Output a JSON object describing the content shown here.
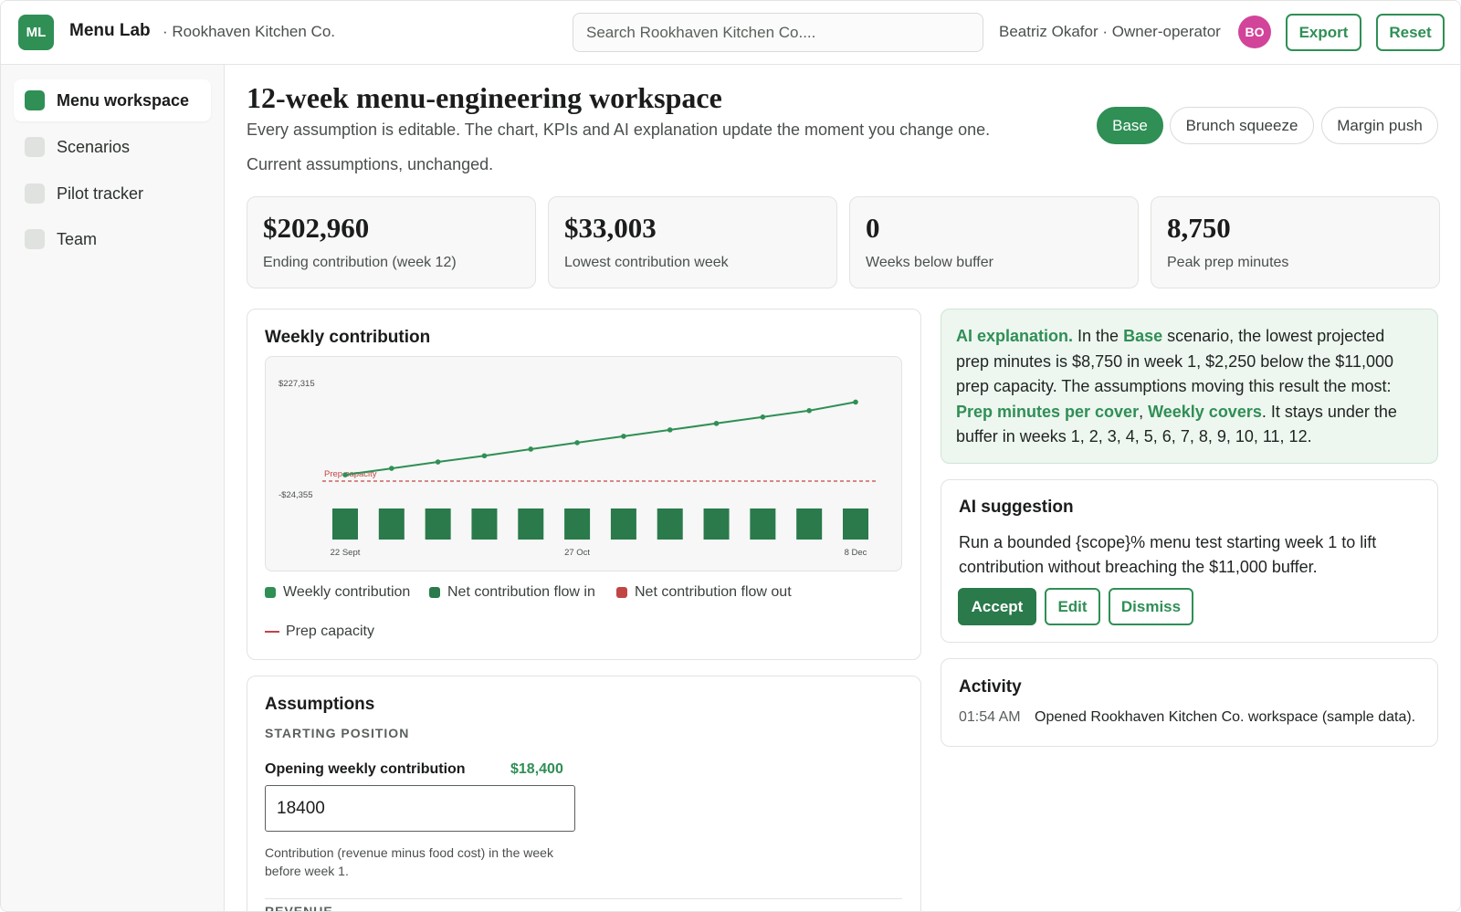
{
  "header": {
    "logo": "ML",
    "app_name": "Menu Lab",
    "org_name": "· Rookhaven Kitchen Co.",
    "search_placeholder": "Search Rookhaven Kitchen Co....",
    "user_label": "Beatriz Okafor · Owner-operator",
    "avatar_initials": "BO",
    "export_label": "Export",
    "reset_label": "Reset"
  },
  "sidebar": {
    "items": [
      {
        "label": "Menu workspace",
        "active": true
      },
      {
        "label": "Scenarios",
        "active": false
      },
      {
        "label": "Pilot tracker",
        "active": false
      },
      {
        "label": "Team",
        "active": false
      }
    ]
  },
  "main": {
    "title": "12-week menu-engineering workspace",
    "subtitle": "Every assumption is editable. The chart, KPIs and AI explanation update the moment you change one.",
    "status": "Current assumptions, unchanged.",
    "scenarios": [
      {
        "label": "Base",
        "active": true
      },
      {
        "label": "Brunch squeeze",
        "active": false
      },
      {
        "label": "Margin push",
        "active": false
      }
    ],
    "kpis": [
      {
        "value": "$202,960",
        "label": "Ending contribution (week 12)"
      },
      {
        "value": "$33,003",
        "label": "Lowest contribution week"
      },
      {
        "value": "0",
        "label": "Weeks below buffer"
      },
      {
        "value": "8,750",
        "label": "Peak prep minutes"
      }
    ]
  },
  "chart_card": {
    "title": "Weekly contribution",
    "legend": [
      {
        "label": "Weekly contribution",
        "color": "#2f8f55",
        "kind": "square"
      },
      {
        "label": "Net contribution flow in",
        "color": "#2a7a4b",
        "kind": "square"
      },
      {
        "label": "Net contribution flow out",
        "color": "#c24545",
        "kind": "square"
      },
      {
        "label": "Prep capacity",
        "color": "#c24545",
        "kind": "line"
      }
    ]
  },
  "chart_data": {
    "type": "line",
    "y_tick_labels": [
      "$227,315",
      "-$24,355"
    ],
    "x_tick_labels": [
      {
        "index": 0,
        "label": "22 Sept"
      },
      {
        "index": 5,
        "label": "27 Oct"
      },
      {
        "index": 11,
        "label": "8 Dec"
      }
    ],
    "ylim": [
      -24355,
      227315
    ],
    "series": [
      {
        "name": "Weekly contribution",
        "kind": "line",
        "color": "#2f8f55",
        "values": [
          33003,
          48000,
          63000,
          77500,
          93000,
          108000,
          123000,
          138000,
          153000,
          168000,
          183000,
          202960
        ]
      },
      {
        "name": "Net contribution flow in",
        "kind": "bar",
        "color": "#2a7a4b",
        "values": [
          15000,
          15000,
          15000,
          15000,
          15000,
          15000,
          15000,
          15000,
          15000,
          15000,
          15000,
          15000
        ]
      }
    ],
    "reference_lines": [
      {
        "name": "Prep capacity",
        "label": "Prep capacity",
        "value": 11000,
        "color": "#c24545",
        "style": "dashed"
      }
    ],
    "grid": false
  },
  "assumptions": {
    "title": "Assumptions",
    "section_starting": "STARTING POSITION",
    "opening_label": "Opening weekly contribution",
    "opening_value": "$18,400",
    "opening_input": "18400",
    "opening_help": "Contribution (revenue minus food cost) in the week before week 1.",
    "section_revenue": "REVENUE"
  },
  "ai_explanation": {
    "lead": "AI explanation.",
    "t1": " In the ",
    "scenario": "Base",
    "t2": " scenario, the lowest projected prep minutes is $8,750 in week 1, $2,250 below the $11,000 prep capacity. The assumptions moving this result the most: ",
    "driver1": "Prep minutes per cover",
    "sep": ", ",
    "driver2": "Weekly covers",
    "t3": ". It stays under the buffer in weeks 1, 2, 3, 4, 5, 6, 7, 8, 9, 10, 11, 12."
  },
  "ai_suggestion": {
    "title": "AI suggestion",
    "text": "Run a bounded {scope}% menu test starting week 1 to lift contribution without breaching the $11,000 buffer.",
    "accept_label": "Accept",
    "edit_label": "Edit",
    "dismiss_label": "Dismiss"
  },
  "activity": {
    "title": "Activity",
    "items": [
      {
        "time": "01:54 AM",
        "text": "Opened Rookhaven Kitchen Co. workspace (sample data)."
      }
    ]
  }
}
